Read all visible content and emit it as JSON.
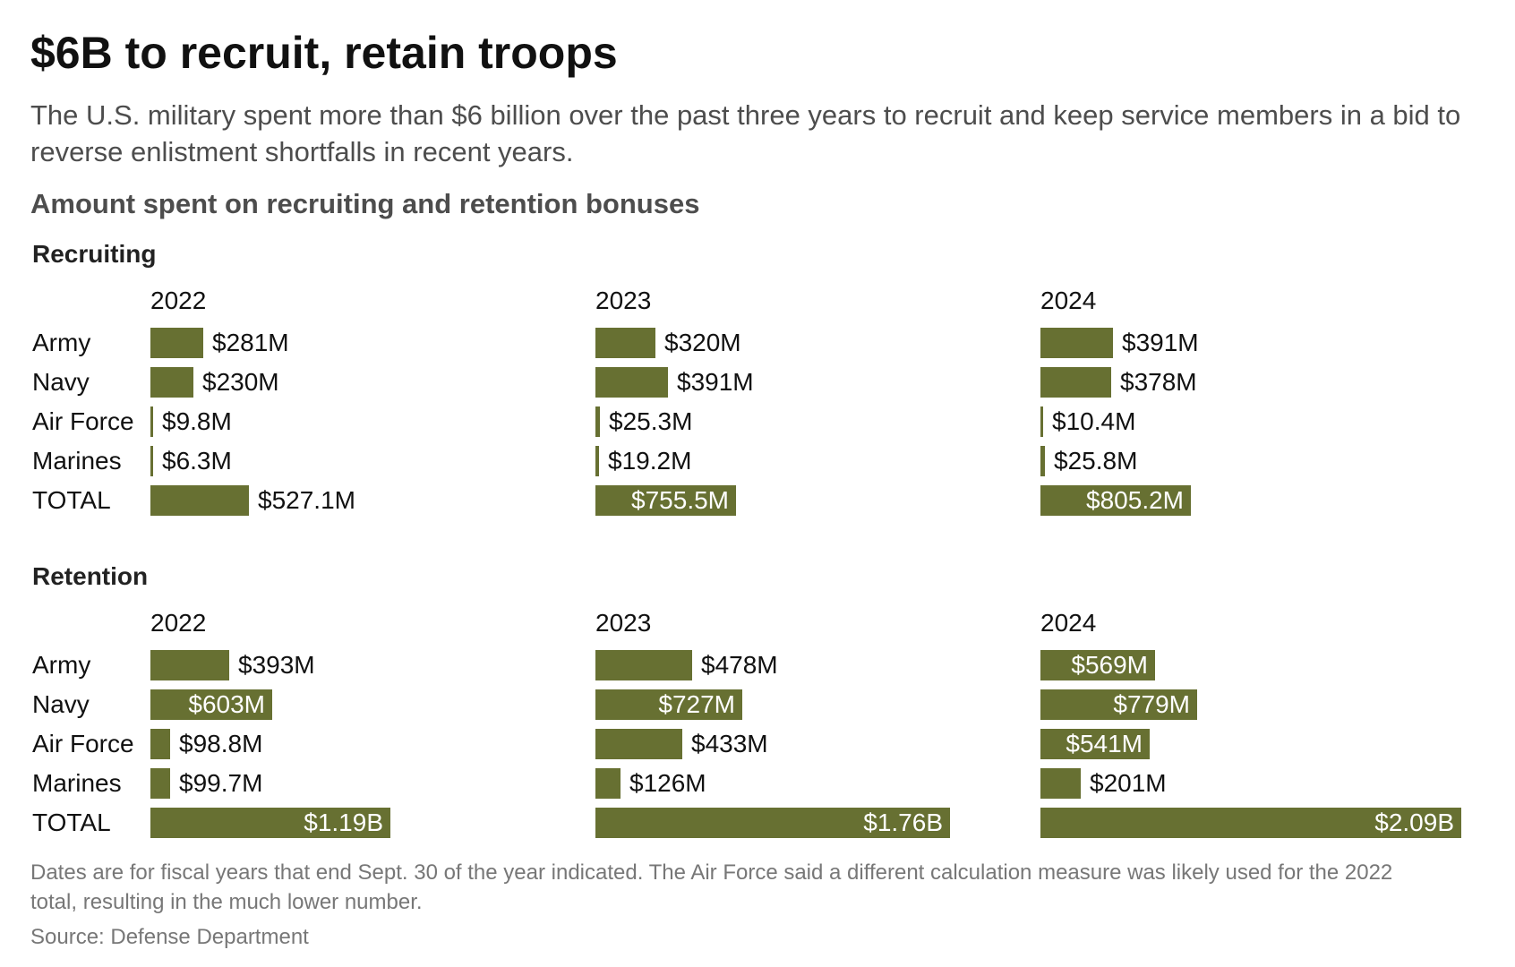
{
  "title": "$6B to recruit, retain troops",
  "subtitle": "The U.S. military spent more than $6 billion over the past three years to recruit and keep service members in a bid to reverse enlistment shortfalls in recent years.",
  "chart_heading": "Amount spent on recruiting and retention bonuses",
  "footnote": "Dates are for fiscal years that end Sept. 30 of the year indicated. The Air Force said a different calculation measure was likely used for the 2022 total, resulting in the much lower number.",
  "source": "Source: Defense Department",
  "colors": {
    "bar": "#677032",
    "inside_label": "#ffffff"
  },
  "chart_data": [
    {
      "type": "bar",
      "section": "Recruiting",
      "orientation": "horizontal",
      "unit": "USD millions",
      "categories": [
        "Army",
        "Navy",
        "Air Force",
        "Marines",
        "TOTAL"
      ],
      "years": [
        "2022",
        "2023",
        "2024"
      ],
      "panels": [
        {
          "year": "2022",
          "values": [
            281,
            230,
            9.8,
            6.3,
            527.1
          ],
          "labels": [
            "$281M",
            "$230M",
            "$9.8M",
            "$6.3M",
            "$527.1M"
          ]
        },
        {
          "year": "2023",
          "values": [
            320,
            391,
            25.3,
            19.2,
            755.5
          ],
          "labels": [
            "$320M",
            "$391M",
            "$25.3M",
            "$19.2M",
            "$755.5M"
          ]
        },
        {
          "year": "2024",
          "values": [
            391,
            378,
            10.4,
            25.8,
            805.2
          ],
          "labels": [
            "$391M",
            "$378M",
            "$10.4M",
            "$25.8M",
            "$805.2M"
          ]
        }
      ]
    },
    {
      "type": "bar",
      "section": "Retention",
      "orientation": "horizontal",
      "unit": "USD millions",
      "categories": [
        "Army",
        "Navy",
        "Air Force",
        "Marines",
        "TOTAL"
      ],
      "years": [
        "2022",
        "2023",
        "2024"
      ],
      "panels": [
        {
          "year": "2022",
          "values": [
            393,
            603,
            98.8,
            99.7,
            1190
          ],
          "labels": [
            "$393M",
            "$603M",
            "$98.8M",
            "$99.7M",
            "$1.19B"
          ]
        },
        {
          "year": "2023",
          "values": [
            478,
            727,
            433,
            126,
            1760
          ],
          "labels": [
            "$478M",
            "$727M",
            "$433M",
            "$126M",
            "$1.76B"
          ]
        },
        {
          "year": "2024",
          "values": [
            569,
            779,
            541,
            201,
            2090
          ],
          "labels": [
            "$569M",
            "$779M",
            "$541M",
            "$201M",
            "$2.09B"
          ]
        }
      ]
    }
  ]
}
